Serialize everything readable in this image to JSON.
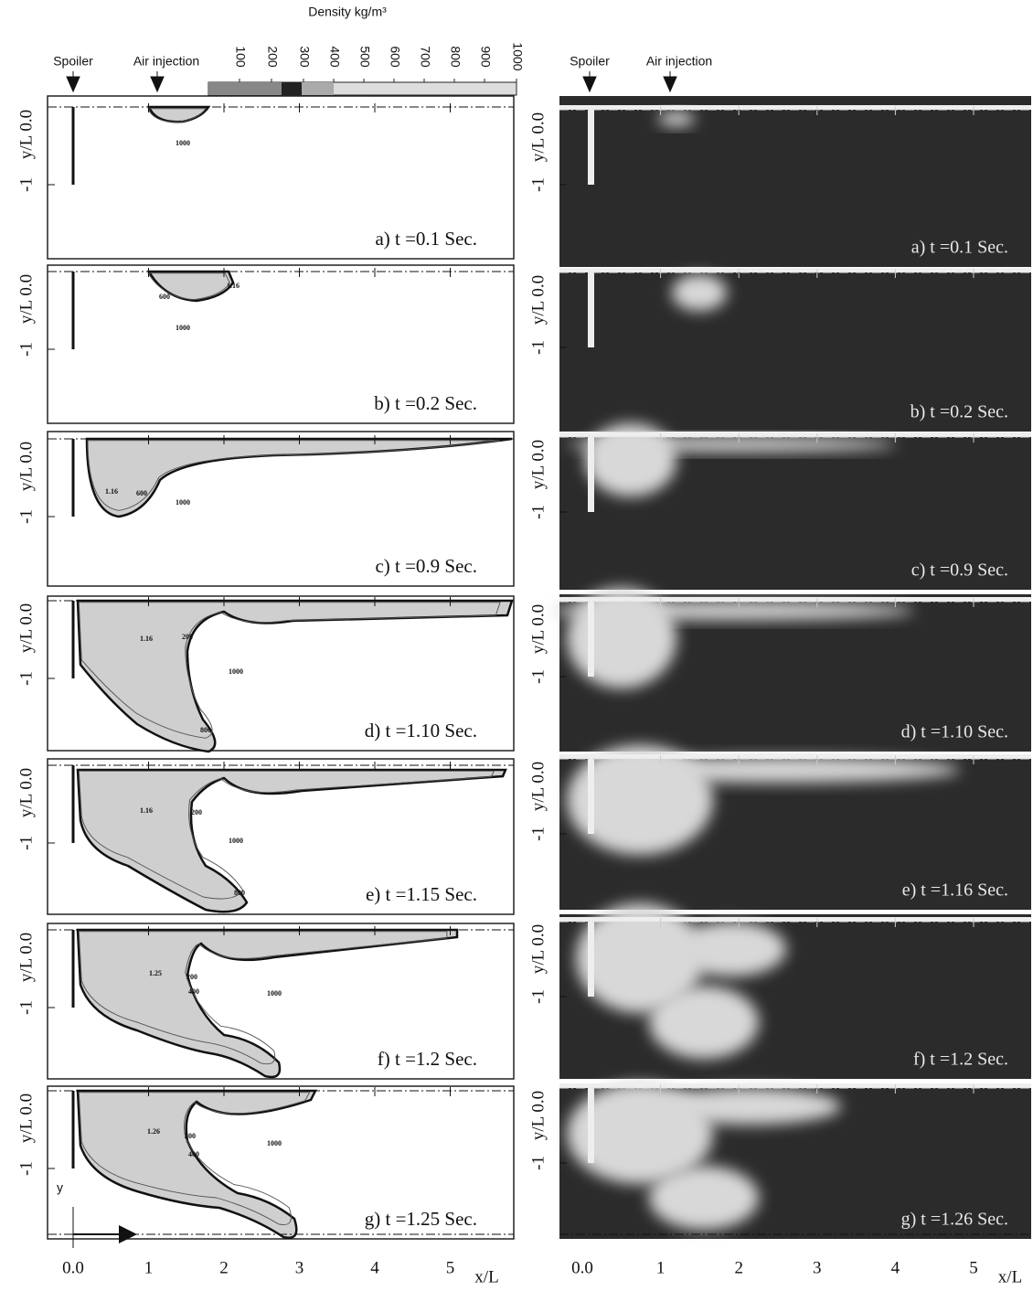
{
  "colorbar": {
    "title": "Density kg/m³",
    "labels": [
      "100",
      "200",
      "300",
      "400",
      "500",
      "600",
      "700",
      "800",
      "900",
      "1000"
    ]
  },
  "simulation": {
    "markers": [
      "Spoiler",
      "Air injection"
    ],
    "y_label_top": "y/L 0.0",
    "y_label_bottom": "-1",
    "y_axis": "y",
    "x_labels": [
      "0.0",
      "1",
      "2",
      "3",
      "4",
      "5"
    ],
    "x_title": "x/L",
    "panels": [
      {
        "label": "a) t =0.1 Sec.",
        "contour_labels": [
          "1000"
        ]
      },
      {
        "label": "b) t =0.2 Sec.",
        "contour_labels": [
          "1.16",
          "600",
          "1000"
        ]
      },
      {
        "label": "c) t =0.9 Sec.",
        "contour_labels": [
          "1.16",
          "600",
          "1000"
        ]
      },
      {
        "label": "d) t =1.10  Sec.",
        "contour_labels": [
          "1.16",
          "200",
          "1000",
          "800"
        ]
      },
      {
        "label": "e) t =1.15 Sec.",
        "contour_labels": [
          "1.16",
          "200",
          "1000",
          "800"
        ]
      },
      {
        "label": "f) t =1.2  Sec.",
        "contour_labels": [
          "1.25",
          "200",
          "400",
          "1000"
        ]
      },
      {
        "label": "g) t =1.25 Sec.",
        "contour_labels": [
          "1.26",
          "200",
          "400",
          "1000"
        ]
      }
    ]
  },
  "experiment": {
    "markers": [
      "Spoiler",
      "Air injection"
    ],
    "y_label_top": "y/L 0.0",
    "y_label_bottom": "-1",
    "x_labels": [
      "0.0",
      "1",
      "2",
      "3",
      "4",
      "5"
    ],
    "x_title": "x/L",
    "panels": [
      {
        "label": "a) t =0.1 Sec."
      },
      {
        "label": "b) t =0.2  Sec."
      },
      {
        "label": "c) t =0.9 Sec."
      },
      {
        "label": "d) t =1.10 Sec."
      },
      {
        "label": "e) t =1.16 Sec."
      },
      {
        "label": "f) t =1.2 Sec."
      },
      {
        "label": "g) t =1.26 Sec."
      }
    ]
  }
}
